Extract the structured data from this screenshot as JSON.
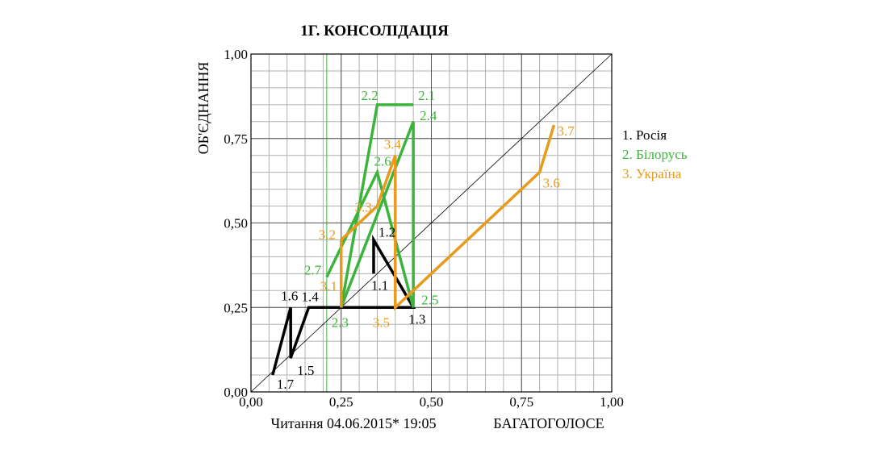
{
  "chart_data": {
    "type": "line",
    "title": "1Г.  КОНСОЛІДАЦІЯ",
    "xlabel": "БАГАТОГОЛОСЕ",
    "ylabel": "ОБ'ЄДНАННЯ",
    "footnote": "Читання 04.06.2015* 19:05",
    "xlim": [
      0,
      1
    ],
    "ylim": [
      0,
      1
    ],
    "xticks": [
      "0,00",
      "0,25",
      "0,50",
      "0,75",
      "1,00"
    ],
    "yticks": [
      "0,00",
      "0,25",
      "0,50",
      "0,75",
      "1,00"
    ],
    "grid": true,
    "diagonal": true,
    "legend_position": "right",
    "reference_lines": [
      {
        "axis": "x",
        "value": 0.21,
        "color": "#3cb43c"
      },
      {
        "axis": "x",
        "value": 0.25,
        "color": "#555555"
      },
      {
        "axis": "x",
        "value": 0.5,
        "color": "#555555"
      },
      {
        "axis": "x",
        "value": 0.75,
        "color": "#555555"
      },
      {
        "axis": "y",
        "value": 0.25,
        "color": "#555555"
      },
      {
        "axis": "y",
        "value": 0.5,
        "color": "#555555"
      },
      {
        "axis": "y",
        "value": 0.75,
        "color": "#555555"
      }
    ],
    "series": [
      {
        "name": "1. Росія",
        "color": "#000000",
        "points": [
          {
            "label": "1.1",
            "x": 0.34,
            "y": 0.35
          },
          {
            "label": "1.2",
            "x": 0.34,
            "y": 0.45
          },
          {
            "label": "1.3",
            "x": 0.45,
            "y": 0.25
          },
          {
            "label": "1.4",
            "x": 0.16,
            "y": 0.25
          },
          {
            "label": "1.5",
            "x": 0.11,
            "y": 0.1
          },
          {
            "label": "1.6",
            "x": 0.11,
            "y": 0.25
          },
          {
            "label": "1.7",
            "x": 0.06,
            "y": 0.05
          }
        ]
      },
      {
        "name": "2. Білорусь",
        "color": "#3cb43c",
        "points": [
          {
            "label": "2.1",
            "x": 0.45,
            "y": 0.85
          },
          {
            "label": "2.2",
            "x": 0.35,
            "y": 0.85
          },
          {
            "label": "2.3",
            "x": 0.25,
            "y": 0.25
          },
          {
            "label": "2.4",
            "x": 0.45,
            "y": 0.8
          },
          {
            "label": "2.5",
            "x": 0.45,
            "y": 0.25
          },
          {
            "label": "2.6",
            "x": 0.35,
            "y": 0.65
          },
          {
            "label": "2.7",
            "x": 0.21,
            "y": 0.34
          }
        ]
      },
      {
        "name": "3. Україна",
        "color": "#e89a1c",
        "points": [
          {
            "label": "3.1",
            "x": 0.25,
            "y": 0.25
          },
          {
            "label": "3.2",
            "x": 0.25,
            "y": 0.45
          },
          {
            "label": "3.3",
            "x": 0.35,
            "y": 0.55
          },
          {
            "label": "3.4",
            "x": 0.4,
            "y": 0.7
          },
          {
            "label": "3.5",
            "x": 0.4,
            "y": 0.25
          },
          {
            "label": "3.6",
            "x": 0.8,
            "y": 0.65
          },
          {
            "label": "3.7",
            "x": 0.84,
            "y": 0.79
          }
        ]
      }
    ]
  }
}
